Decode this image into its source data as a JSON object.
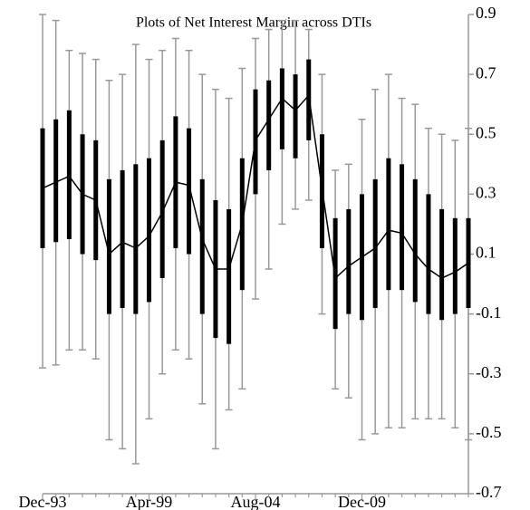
{
  "chart_data": {
    "type": "box",
    "title": "Plots of Net Interest Margin across DTIs",
    "categories": [
      "Dec-93",
      null,
      null,
      null,
      null,
      null,
      null,
      null,
      "Apr-99",
      null,
      null,
      null,
      null,
      null,
      null,
      null,
      "Aug-04",
      null,
      null,
      null,
      null,
      null,
      null,
      null,
      "Dec-09",
      null,
      null,
      null,
      null,
      null,
      null,
      null,
      null
    ],
    "whisker_low": [
      -0.28,
      -0.27,
      -0.22,
      -0.22,
      -0.25,
      -0.52,
      -0.55,
      -0.6,
      -0.45,
      -0.3,
      -0.22,
      -0.25,
      -0.4,
      -0.55,
      -0.42,
      -0.35,
      -0.05,
      0.05,
      0.2,
      0.25,
      0.28,
      -0.1,
      -0.35,
      -0.38,
      -0.52,
      -0.5,
      -0.48,
      -0.48,
      -0.45,
      -0.45,
      -0.45,
      -0.48,
      -0.52
    ],
    "q1": [
      0.12,
      0.14,
      0.15,
      0.1,
      0.08,
      -0.1,
      -0.08,
      -0.1,
      -0.06,
      0.02,
      0.12,
      0.1,
      -0.1,
      -0.18,
      -0.2,
      -0.02,
      0.3,
      0.38,
      0.45,
      0.42,
      0.48,
      0.12,
      -0.15,
      -0.1,
      -0.12,
      -0.08,
      -0.02,
      -0.02,
      -0.06,
      -0.1,
      -0.12,
      -0.1,
      -0.08
    ],
    "median": [
      0.32,
      0.34,
      0.36,
      0.3,
      0.28,
      0.1,
      0.14,
      0.12,
      0.16,
      0.24,
      0.34,
      0.33,
      0.15,
      0.05,
      0.05,
      0.2,
      0.48,
      0.55,
      0.62,
      0.58,
      0.63,
      0.32,
      0.02,
      0.06,
      0.09,
      0.12,
      0.18,
      0.17,
      0.1,
      0.05,
      0.02,
      0.04,
      0.07
    ],
    "q3": [
      0.52,
      0.55,
      0.58,
      0.5,
      0.48,
      0.35,
      0.38,
      0.4,
      0.42,
      0.48,
      0.56,
      0.52,
      0.35,
      0.28,
      0.25,
      0.42,
      0.65,
      0.68,
      0.72,
      0.7,
      0.75,
      0.5,
      0.22,
      0.25,
      0.3,
      0.35,
      0.42,
      0.4,
      0.35,
      0.3,
      0.25,
      0.22,
      0.22
    ],
    "whisker_high": [
      0.9,
      0.88,
      0.78,
      0.77,
      0.75,
      0.68,
      0.7,
      0.8,
      0.75,
      0.78,
      0.82,
      0.78,
      0.7,
      0.65,
      0.62,
      0.72,
      0.82,
      0.85,
      0.88,
      0.88,
      0.85,
      0.7,
      0.38,
      0.4,
      0.55,
      0.65,
      0.7,
      0.62,
      0.6,
      0.52,
      0.5,
      0.48,
      0.52
    ],
    "whisker_color": "#999999",
    "box_color": "#000000",
    "median_color": "#000000",
    "ylim": [
      -0.7,
      0.9
    ],
    "yticks": [
      -0.7,
      -0.5,
      -0.3,
      -0.1,
      0.1,
      0.3,
      0.5,
      0.7,
      0.9
    ],
    "y_axis_side": "right"
  }
}
